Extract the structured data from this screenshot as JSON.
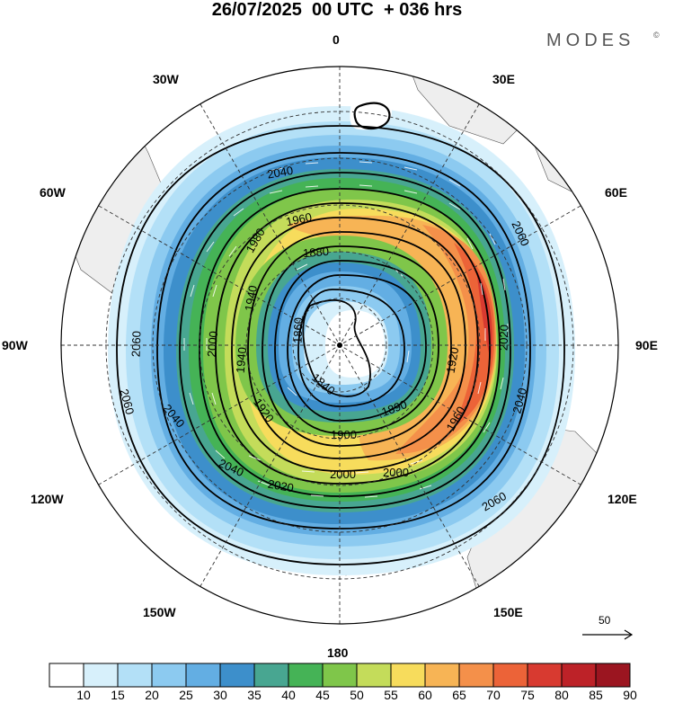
{
  "title": "26/07/2025  00 UTC  + 036 hrs",
  "brand": "MODES",
  "brand_mark": "©",
  "longitude_labels": {
    "lon_0": "0",
    "lon_30e": "30E",
    "lon_60e": "60E",
    "lon_90e": "90E",
    "lon_120e": "120E",
    "lon_150e": "150E",
    "lon_180": "180",
    "lon_150w": "150W",
    "lon_120w": "120W",
    "lon_90w": "90W",
    "lon_60w": "60W",
    "lon_30w": "30W"
  },
  "contour_values": [
    "1840",
    "1860",
    "1880",
    "1890",
    "1900",
    "1920",
    "1940",
    "1960",
    "1980",
    "2000",
    "2020",
    "2040",
    "2060"
  ],
  "wind_reference": {
    "label": "50",
    "icon": "arrow-right-icon"
  },
  "colorbar": {
    "ticks": [
      "10",
      "15",
      "20",
      "25",
      "30",
      "35",
      "40",
      "45",
      "50",
      "55",
      "60",
      "65",
      "70",
      "75",
      "80",
      "85",
      "90"
    ],
    "colors": [
      "#ffffff",
      "#d7f0fb",
      "#b3e0f7",
      "#8ccaf0",
      "#63aee3",
      "#3d8fcb",
      "#48a691",
      "#45b356",
      "#7fc64a",
      "#c4dc5a",
      "#f7dc5c",
      "#f7b455",
      "#f4904a",
      "#ec6338",
      "#d83a30",
      "#bd2228",
      "#9b1520"
    ]
  }
}
